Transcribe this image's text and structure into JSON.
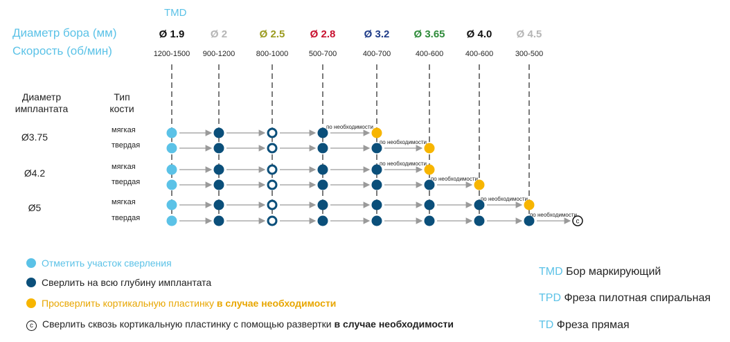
{
  "header": {
    "tmd_label": "TMD",
    "drill_diameter_label": "Диаметр бора (мм)",
    "speed_label": "Скорость (об/мин)"
  },
  "drills": [
    {
      "label": "Ø 1.9",
      "speed": "1200-1500",
      "color": "#111111"
    },
    {
      "label": "Ø 2",
      "speed": "900-1200",
      "color": "#b5b5b5"
    },
    {
      "label": "Ø 2.5",
      "speed": "800-1000",
      "color": "#9a9a1e"
    },
    {
      "label": "Ø 2.8",
      "speed": "500-700",
      "color": "#c8102e"
    },
    {
      "label": "Ø 3.2",
      "speed": "400-700",
      "color": "#1f3c88"
    },
    {
      "label": "Ø 3.65",
      "speed": "400-600",
      "color": "#2e8b3a"
    },
    {
      "label": "Ø 4.0",
      "speed": "400-600",
      "color": "#111111"
    },
    {
      "label": "Ø 4.5",
      "speed": "300-500",
      "color": "#b5b5b5"
    }
  ],
  "table_headers": {
    "implant_diameter": "Диаметр имплантата",
    "bone_type": "Тип кости"
  },
  "groups": [
    {
      "implant": "Ø3.75",
      "rows": [
        {
          "bone": "мягкая",
          "steps": [
            "mark",
            "full",
            "ring",
            "full",
            "optional"
          ],
          "last_extra": false
        },
        {
          "bone": "твердая",
          "steps": [
            "mark",
            "full",
            "ring",
            "full",
            "full",
            "optional"
          ],
          "last_extra": false
        }
      ]
    },
    {
      "implant": "Ø4.2",
      "rows": [
        {
          "bone": "мягкая",
          "steps": [
            "mark",
            "full",
            "ring",
            "full",
            "full",
            "optional"
          ],
          "last_extra": false
        },
        {
          "bone": "твердая",
          "steps": [
            "mark",
            "full",
            "ring",
            "full",
            "full",
            "full",
            "optional"
          ],
          "last_extra": false
        }
      ]
    },
    {
      "implant": "Ø5",
      "rows": [
        {
          "bone": "мягкая",
          "steps": [
            "mark",
            "full",
            "ring",
            "full",
            "full",
            "full",
            "full",
            "optional"
          ],
          "last_extra": false
        },
        {
          "bone": "твердая",
          "steps": [
            "mark",
            "full",
            "ring",
            "full",
            "full",
            "full",
            "full",
            "full"
          ],
          "last_extra": true
        }
      ]
    }
  ],
  "if_needed_text": "по необходимости",
  "countersink_symbol": "c",
  "legend": {
    "mark": "Отметить участок сверления",
    "full": "Сверлить на всю глубину имплантата",
    "optional_prefix": "Просверлить кортикальную пластинку ",
    "optional_bold": "в случае необходимости",
    "countersink_symbol": "c",
    "countersink_prefix": "Сверлить сквозь кортикальную пластинку с помощью развертки ",
    "countersink_bold": "в случае необходимости"
  },
  "abbreviations": [
    {
      "code": "TMD",
      "text": " Бор маркирующий"
    },
    {
      "code": "TPD",
      "text": " Фреза пилотная спиральная"
    },
    {
      "code": "TD",
      "text": " Фреза прямая"
    }
  ],
  "colors": {
    "accent_blue": "#5bc2e7",
    "dark_blue": "#0b4f7a",
    "yellow": "#f7b500",
    "arrow": "#9a9a9a"
  }
}
